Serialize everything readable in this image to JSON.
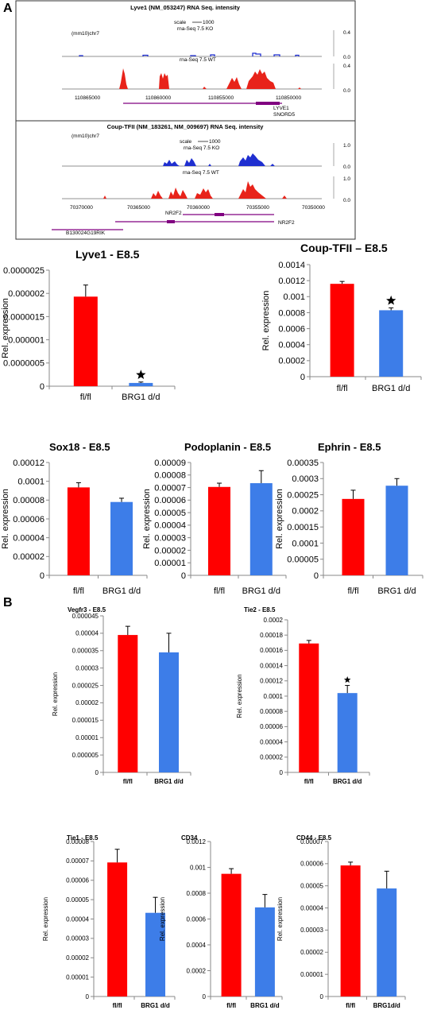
{
  "panels": {
    "a": "A",
    "b": "B"
  },
  "colors": {
    "wt": "#ff0000",
    "ko": "#3d7de8",
    "track_blue": "#1f2fd0",
    "track_red": "#e8231a",
    "gene": "#800080"
  },
  "browser": [
    {
      "title": "Lyve1 (NM_053247) RNA Seq. intensity",
      "assembly": "(mm10)chr7",
      "scale_label": "scale",
      "scale_value": "1000",
      "ko_label": "rna-Seq 7.5 KO",
      "wt_label": "rna-Seq 7.5 WT",
      "ko_axis": [
        "0.4",
        "0.0"
      ],
      "wt_axis": [
        "0.4",
        "0.0"
      ],
      "positions": [
        "110865000",
        "110860000",
        "110855000",
        "110850000"
      ],
      "genes": [
        "LYVE1",
        "SNORD5"
      ]
    },
    {
      "title": "Coup-TFII (NM_183261, NM_009697) RNA Seq. intensity",
      "assembly": "(mm10)chr7",
      "scale_label": "scale",
      "scale_value": "1000",
      "ko_label": "rna-Seq 7.5 KO",
      "wt_label": "rna-Seq 7.5 WT",
      "ko_axis": [
        "1.0",
        "0.0"
      ],
      "wt_axis": [
        "1.0",
        "0.0"
      ],
      "positions": [
        "70370000",
        "70365000",
        "70360000",
        "70355000",
        "70350000"
      ],
      "genes": [
        "NR2F2",
        "NR2F2",
        "B130024G19RIK"
      ]
    }
  ],
  "chart_data": [
    {
      "type": "bar",
      "title": "Lyve1 - E8.5",
      "ylabel": "Rel. expression",
      "categories": [
        "fl/fl",
        "BRG1 d/d"
      ],
      "values": [
        1.93e-06,
        7e-08
      ],
      "errors": [
        2.5e-07,
        2e-08
      ],
      "significant": [
        false,
        true
      ],
      "ylim": [
        0,
        2.5e-06
      ],
      "yticks": [
        "0",
        "0.0000005",
        "0.000001",
        "0.0000015",
        "0.000002",
        "0.0000025"
      ]
    },
    {
      "type": "bar",
      "title": "Coup-TFII – E8.5",
      "ylabel": "Rel. expression",
      "categories": [
        "fl/fl",
        "BRG1 d/d"
      ],
      "values": [
        0.00116,
        0.00083
      ],
      "errors": [
        3e-05,
        3e-05
      ],
      "significant": [
        false,
        true
      ],
      "ylim": [
        0,
        0.0014
      ],
      "yticks": [
        "0",
        "0.0002",
        "0.0004",
        "0.0006",
        "0.0008",
        "0.001",
        "0.0012",
        "0.0014"
      ]
    },
    {
      "type": "bar",
      "title": "Sox18 - E8.5",
      "ylabel": "Rel. expression",
      "categories": [
        "fl/fl",
        "BRG1 d/d"
      ],
      "values": [
        9.35e-05,
        7.8e-05
      ],
      "errors": [
        5e-06,
        4e-06
      ],
      "significant": [
        false,
        false
      ],
      "ylim": [
        0,
        0.00012
      ],
      "yticks": [
        "0",
        "0.00002",
        "0.00004",
        "0.00006",
        "0.00008",
        "0.0001",
        "0.00012"
      ]
    },
    {
      "type": "bar",
      "title": "Podoplanin - E8.5",
      "ylabel": "Rel. expression",
      "categories": [
        "fl/fl",
        "BRG1 d/d"
      ],
      "values": [
        7.05e-05,
        7.35e-05
      ],
      "errors": [
        3e-06,
        1e-05
      ],
      "significant": [
        false,
        false
      ],
      "ylim": [
        0,
        9e-05
      ],
      "yticks": [
        "0",
        "0.00001",
        "0.00002",
        "0.00003",
        "0.00004",
        "0.00005",
        "0.00006",
        "0.00007",
        "0.00008",
        "0.00009"
      ]
    },
    {
      "type": "bar",
      "title": "Ephrin - E8.5",
      "ylabel": "Rel. expression",
      "categories": [
        "fl/fl",
        "BRG1 d/d"
      ],
      "values": [
        0.000237,
        0.000278
      ],
      "errors": [
        2.7e-05,
        2.2e-05
      ],
      "significant": [
        false,
        false
      ],
      "ylim": [
        0,
        0.00035
      ],
      "yticks": [
        "0",
        "0.00005",
        "0.0001",
        "0.00015",
        "0.0002",
        "0.00025",
        "0.0003",
        "0.00035"
      ]
    },
    {
      "type": "bar",
      "title": "Vegfr3 - E8.5",
      "ylabel": "Rel. expression",
      "categories": [
        "fl/fl",
        "BRG1 d/d"
      ],
      "values": [
        3.95e-05,
        3.45e-05
      ],
      "errors": [
        2.5e-06,
        5.5e-06
      ],
      "significant": [
        false,
        false
      ],
      "ylim": [
        0,
        4.5e-05
      ],
      "yticks": [
        "0",
        "0.000005",
        "0.00001",
        "0.000015",
        "0.00002",
        "0.000025",
        "0.00003",
        "0.000035",
        "0.00004",
        "0.000045"
      ]
    },
    {
      "type": "bar",
      "title": "Tie2 - E8.5",
      "ylabel": "Rel. expression",
      "categories": [
        "fl/fl",
        "BRG1 d/d"
      ],
      "values": [
        0.000169,
        0.000104
      ],
      "errors": [
        4e-06,
        1e-05
      ],
      "significant": [
        false,
        true
      ],
      "ylim": [
        0,
        0.0002
      ],
      "yticks": [
        "0",
        "0.00002",
        "0.00004",
        "0.00006",
        "0.00008",
        "0.0001",
        "0.00012",
        "0.00014",
        "0.00016",
        "0.00018",
        "0.0002"
      ]
    },
    {
      "type": "bar",
      "title": "Tie1 - E8.5",
      "ylabel": "Rel. expression",
      "categories": [
        "fl/fl",
        "BRG1 d/d"
      ],
      "values": [
        6.92e-05,
        4.32e-05
      ],
      "errors": [
        6.8e-06,
        8e-06
      ],
      "significant": [
        false,
        false
      ],
      "ylim": [
        0,
        8e-05
      ],
      "yticks": [
        "0",
        "0.00001",
        "0.00002",
        "0.00003",
        "0.00004",
        "0.00005",
        "0.00006",
        "0.00007",
        "0.00008"
      ]
    },
    {
      "type": "bar",
      "title": "CD34",
      "ylabel": "Rel. expression",
      "categories": [
        "fl/fl",
        "BRG1 d/d"
      ],
      "values": [
        0.00095,
        0.00069
      ],
      "errors": [
        4e-05,
        0.0001
      ],
      "significant": [
        false,
        false
      ],
      "ylim": [
        0,
        0.0012
      ],
      "yticks": [
        "0",
        "0.0002",
        "0.0004",
        "0.0006",
        "0.0008",
        "0.001",
        "0.0012"
      ]
    },
    {
      "type": "bar",
      "title": "CD44 - E8.5",
      "ylabel": "Rel. expression",
      "categories": [
        "fl/fl",
        "BRG1d/d"
      ],
      "values": [
        5.92e-05,
        4.88e-05
      ],
      "errors": [
        1.5e-06,
        7.8e-06
      ],
      "significant": [
        false,
        false
      ],
      "ylim": [
        0,
        7e-05
      ],
      "yticks": [
        "0",
        "0.00001",
        "0.00002",
        "0.00003",
        "0.00004",
        "0.00005",
        "0.00006",
        "0.00007"
      ]
    }
  ]
}
